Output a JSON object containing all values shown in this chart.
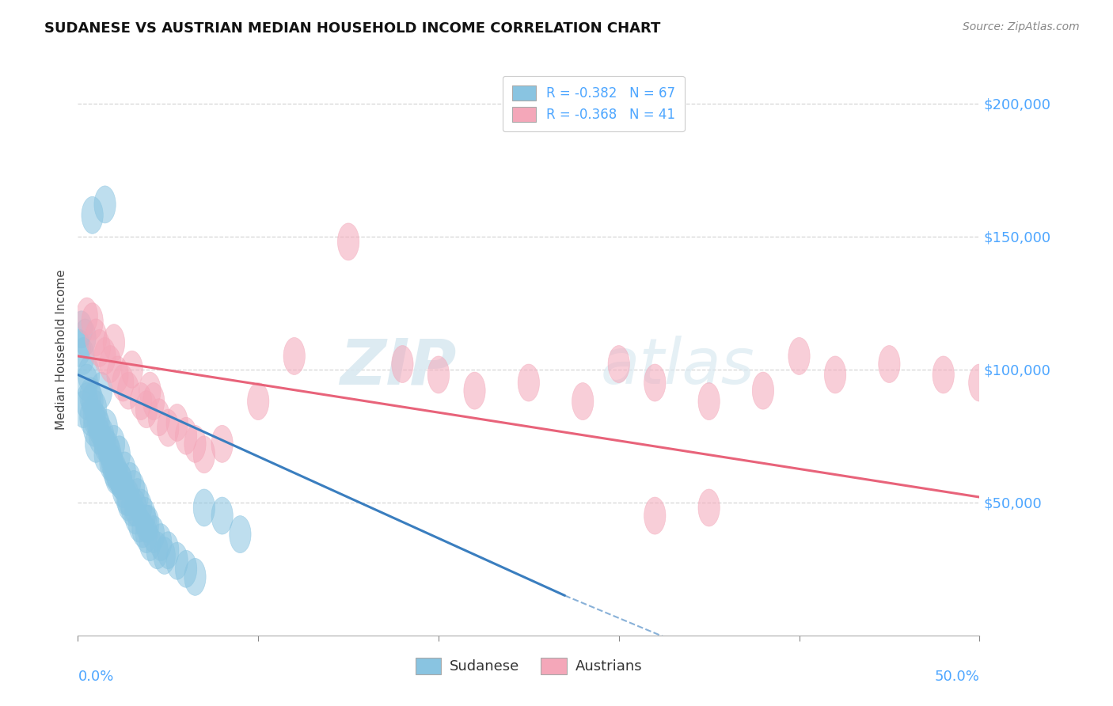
{
  "title": "SUDANESE VS AUSTRIAN MEDIAN HOUSEHOLD INCOME CORRELATION CHART",
  "source": "Source: ZipAtlas.com",
  "ylabel": "Median Household Income",
  "xlim": [
    0.0,
    0.5
  ],
  "ylim": [
    0,
    215000
  ],
  "legend_blue_text": "R = -0.382   N = 67",
  "legend_pink_text": "R = -0.368   N = 41",
  "blue_color": "#89c4e1",
  "pink_color": "#f4a7b9",
  "blue_line_color": "#3a7ebf",
  "pink_line_color": "#e8637a",
  "blue_scatter": [
    [
      0.001,
      108000
    ],
    [
      0.002,
      115000
    ],
    [
      0.003,
      105000
    ],
    [
      0.004,
      112000
    ],
    [
      0.005,
      95000
    ],
    [
      0.006,
      98000
    ],
    [
      0.007,
      90000
    ],
    [
      0.008,
      88000
    ],
    [
      0.009,
      82000
    ],
    [
      0.01,
      85000
    ],
    [
      0.011,
      80000
    ],
    [
      0.012,
      78000
    ],
    [
      0.013,
      92000
    ],
    [
      0.014,
      75000
    ],
    [
      0.015,
      72000
    ],
    [
      0.016,
      78000
    ],
    [
      0.017,
      70000
    ],
    [
      0.018,
      68000
    ],
    [
      0.019,
      65000
    ],
    [
      0.02,
      72000
    ],
    [
      0.021,
      62000
    ],
    [
      0.022,
      60000
    ],
    [
      0.023,
      68000
    ],
    [
      0.024,
      58000
    ],
    [
      0.025,
      55000
    ],
    [
      0.026,
      62000
    ],
    [
      0.027,
      52000
    ],
    [
      0.028,
      50000
    ],
    [
      0.029,
      58000
    ],
    [
      0.03,
      48000
    ],
    [
      0.031,
      55000
    ],
    [
      0.032,
      45000
    ],
    [
      0.033,
      52000
    ],
    [
      0.034,
      42000
    ],
    [
      0.035,
      48000
    ],
    [
      0.036,
      40000
    ],
    [
      0.037,
      45000
    ],
    [
      0.038,
      38000
    ],
    [
      0.039,
      42000
    ],
    [
      0.04,
      35000
    ],
    [
      0.042,
      38000
    ],
    [
      0.044,
      32000
    ],
    [
      0.046,
      35000
    ],
    [
      0.048,
      30000
    ],
    [
      0.05,
      32000
    ],
    [
      0.055,
      28000
    ],
    [
      0.06,
      25000
    ],
    [
      0.065,
      22000
    ],
    [
      0.003,
      85000
    ],
    [
      0.005,
      88000
    ],
    [
      0.007,
      82000
    ],
    [
      0.009,
      78000
    ],
    [
      0.012,
      75000
    ],
    [
      0.015,
      68000
    ],
    [
      0.018,
      65000
    ],
    [
      0.021,
      60000
    ],
    [
      0.024,
      58000
    ],
    [
      0.028,
      52000
    ],
    [
      0.032,
      48000
    ],
    [
      0.038,
      42000
    ],
    [
      0.008,
      158000
    ],
    [
      0.015,
      162000
    ],
    [
      0.07,
      48000
    ],
    [
      0.08,
      45000
    ],
    [
      0.09,
      38000
    ],
    [
      0.01,
      72000
    ],
    [
      0.02,
      62000
    ]
  ],
  "pink_scatter": [
    [
      0.005,
      120000
    ],
    [
      0.008,
      118000
    ],
    [
      0.01,
      112000
    ],
    [
      0.012,
      108000
    ],
    [
      0.015,
      105000
    ],
    [
      0.018,
      102000
    ],
    [
      0.02,
      110000
    ],
    [
      0.022,
      98000
    ],
    [
      0.025,
      95000
    ],
    [
      0.028,
      92000
    ],
    [
      0.03,
      100000
    ],
    [
      0.035,
      88000
    ],
    [
      0.038,
      85000
    ],
    [
      0.04,
      92000
    ],
    [
      0.042,
      88000
    ],
    [
      0.045,
      82000
    ],
    [
      0.05,
      78000
    ],
    [
      0.055,
      80000
    ],
    [
      0.06,
      75000
    ],
    [
      0.065,
      72000
    ],
    [
      0.12,
      105000
    ],
    [
      0.15,
      148000
    ],
    [
      0.18,
      102000
    ],
    [
      0.2,
      98000
    ],
    [
      0.22,
      92000
    ],
    [
      0.25,
      95000
    ],
    [
      0.28,
      88000
    ],
    [
      0.3,
      102000
    ],
    [
      0.32,
      95000
    ],
    [
      0.35,
      88000
    ],
    [
      0.38,
      92000
    ],
    [
      0.4,
      105000
    ],
    [
      0.42,
      98000
    ],
    [
      0.45,
      102000
    ],
    [
      0.48,
      98000
    ],
    [
      0.5,
      95000
    ],
    [
      0.07,
      68000
    ],
    [
      0.08,
      72000
    ],
    [
      0.1,
      88000
    ],
    [
      0.32,
      45000
    ],
    [
      0.35,
      48000
    ]
  ],
  "blue_trendline_solid": [
    [
      0.0,
      98000
    ],
    [
      0.27,
      15000
    ]
  ],
  "blue_trendline_dashed": [
    [
      0.27,
      15000
    ],
    [
      0.5,
      -50000
    ]
  ],
  "pink_trendline": [
    [
      0.0,
      105000
    ],
    [
      0.5,
      52000
    ]
  ],
  "watermark_zip": "ZIP",
  "watermark_atlas": "atlas",
  "grid_color": "#cccccc",
  "title_fontsize": 13,
  "axis_label_color": "#4da6ff",
  "scatter_size": 100,
  "marker_style": "o"
}
